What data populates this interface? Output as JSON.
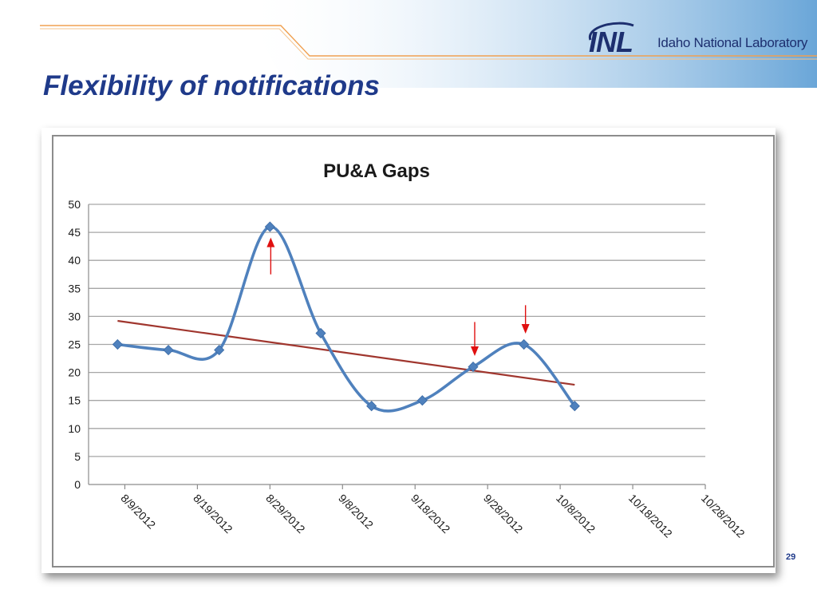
{
  "slide": {
    "title": "Flexibility of notifications",
    "page_number": "29"
  },
  "logo": {
    "mark": "INL",
    "text": "Idaho National Laboratory"
  },
  "colors": {
    "title": "#1f3a8a",
    "series": "#4f81bd",
    "trendline": "#a0362e",
    "arrows": "#e01010",
    "gridline": "#a6a6a6",
    "banner": "#5b9bd5",
    "accent_line": "#f0a050"
  },
  "chart_data": {
    "type": "line",
    "title": "PU&A Gaps",
    "xlabel": "",
    "ylabel": "",
    "x_axis": "date",
    "xlim": [
      "8/4/2012",
      "10/28/2012"
    ],
    "ylim": [
      0,
      50
    ],
    "grid": true,
    "legend": "none",
    "smooth": true,
    "x_ticks": [
      "8/9/2012",
      "8/19/2012",
      "8/29/2012",
      "9/8/2012",
      "9/18/2012",
      "9/28/2012",
      "10/8/2012",
      "10/18/2012",
      "10/28/2012"
    ],
    "y_ticks": [
      0,
      5,
      10,
      15,
      20,
      25,
      30,
      35,
      40,
      45,
      50
    ],
    "series": [
      {
        "x": [
          "8/8/2012",
          "8/15/2012",
          "8/22/2012",
          "8/29/2012",
          "9/5/2012",
          "9/12/2012",
          "9/19/2012",
          "9/26/2012",
          "10/3/2012",
          "10/10/2012"
        ],
        "y": [
          25,
          24,
          24,
          46,
          27,
          14,
          15,
          21,
          25,
          14
        ]
      }
    ],
    "trendline": {
      "x": [
        "8/8/2012",
        "10/10/2012"
      ],
      "y": [
        29.2,
        17.8
      ]
    },
    "annotations": [
      {
        "type": "arrow-up",
        "x": "8/29/2012",
        "y_from": 37.5,
        "y_to": 43.5
      },
      {
        "type": "arrow-down",
        "x": "9/26/2012",
        "y_from": 29,
        "y_to": 23.5
      },
      {
        "type": "arrow-down",
        "x": "10/3/2012",
        "y_from": 32,
        "y_to": 27.5
      }
    ]
  }
}
